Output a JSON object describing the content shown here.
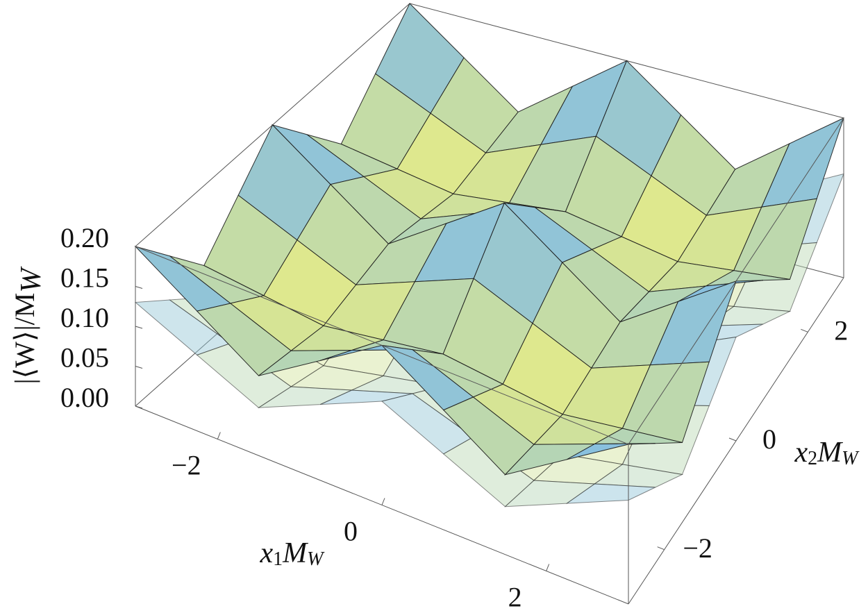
{
  "chart_data": {
    "type": "surface3d",
    "x": [
      -3,
      -2.25,
      -1.5,
      -0.75,
      0,
      0.75,
      1.5,
      2.25,
      3
    ],
    "y": [
      -3,
      -2.25,
      -1.5,
      -0.75,
      0,
      0.75,
      1.5,
      2.25,
      3
    ],
    "xlim": [
      -3,
      3
    ],
    "ylim": [
      -3,
      3
    ],
    "zlim": [
      0,
      0.2
    ],
    "xticks": [
      {
        "value": -2,
        "label": "−2"
      },
      0,
      2
    ],
    "yticks": [
      {
        "value": -2,
        "label": "−2"
      },
      0,
      2
    ],
    "zticks": [
      {
        "value": 0,
        "label": "0.00"
      },
      0.05,
      {
        "value": 0.1,
        "label": "0.10"
      },
      0.15,
      {
        "value": 0.2,
        "label": "0.20"
      }
    ],
    "xlabel": {
      "main": "x",
      "index": "1",
      "mass": "M",
      "sub": "W"
    },
    "ylabel": {
      "main": "x",
      "index": "2",
      "mass": "M",
      "sub": "W"
    },
    "zlabel": {
      "main": "|⟨W⟩|/M",
      "sub": "W"
    },
    "series": [
      {
        "colors": [
          "#f3f27a",
          "#74b6f2"
        ],
        "opacity": 0.45,
        "values": [
          [
            0.13,
            0.095,
            0.06,
            0.095,
            0.13,
            0.095,
            0.06,
            0.095,
            0.13
          ],
          [
            0.095,
            0.07,
            0.045,
            0.07,
            0.095,
            0.07,
            0.045,
            0.07,
            0.095
          ],
          [
            0.06,
            0.045,
            0.03,
            0.045,
            0.06,
            0.045,
            0.03,
            0.045,
            0.06
          ],
          [
            0.095,
            0.07,
            0.045,
            0.07,
            0.095,
            0.07,
            0.045,
            0.07,
            0.095
          ],
          [
            0.13,
            0.095,
            0.06,
            0.095,
            0.13,
            0.095,
            0.06,
            0.095,
            0.13
          ],
          [
            0.095,
            0.07,
            0.045,
            0.07,
            0.095,
            0.07,
            0.045,
            0.07,
            0.095
          ],
          [
            0.06,
            0.045,
            0.03,
            0.045,
            0.06,
            0.045,
            0.03,
            0.045,
            0.06
          ],
          [
            0.095,
            0.07,
            0.045,
            0.07,
            0.095,
            0.07,
            0.045,
            0.07,
            0.095
          ],
          [
            0.13,
            0.095,
            0.06,
            0.095,
            0.13,
            0.095,
            0.06,
            0.095,
            0.13
          ]
        ]
      },
      {
        "colors": [
          "#f3f27a",
          "#74b6f2"
        ],
        "opacity": 1,
        "values": [
          [
            0.2,
            0.15,
            0.1,
            0.15,
            0.2,
            0.15,
            0.1,
            0.15,
            0.2
          ],
          [
            0.15,
            0.12,
            0.09,
            0.12,
            0.15,
            0.12,
            0.09,
            0.12,
            0.15
          ],
          [
            0.1,
            0.09,
            0.08,
            0.09,
            0.1,
            0.09,
            0.08,
            0.09,
            0.1
          ],
          [
            0.15,
            0.12,
            0.09,
            0.12,
            0.15,
            0.12,
            0.09,
            0.12,
            0.15
          ],
          [
            0.2,
            0.15,
            0.1,
            0.15,
            0.2,
            0.15,
            0.1,
            0.15,
            0.2
          ],
          [
            0.15,
            0.12,
            0.09,
            0.12,
            0.15,
            0.12,
            0.09,
            0.12,
            0.15
          ],
          [
            0.1,
            0.09,
            0.08,
            0.09,
            0.1,
            0.09,
            0.08,
            0.09,
            0.1
          ],
          [
            0.15,
            0.12,
            0.09,
            0.12,
            0.15,
            0.12,
            0.09,
            0.12,
            0.15
          ],
          [
            0.2,
            0.15,
            0.1,
            0.15,
            0.2,
            0.15,
            0.1,
            0.15,
            0.2
          ]
        ]
      }
    ]
  }
}
